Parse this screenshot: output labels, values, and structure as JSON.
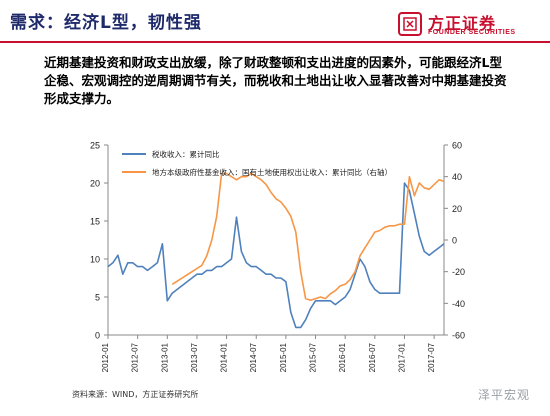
{
  "header": {
    "title": "需求：经济L型，韧性强",
    "logo_cn": "方正证券",
    "logo_en": "FOUNDER SECURITIES"
  },
  "intro_text": "近期基建投资和财政支出放缓，除了财政整顿和支出进度的因素外，可能跟经济L型企稳、宏观调控的逆周期调节有关，而税收和土地出让收入显著改善对中期基建投资形成支撑力。",
  "footer": {
    "source": "资料来源：WIND，方正证券研究所",
    "watermark": "泽平宏观"
  },
  "colors": {
    "accent": "#c8102e",
    "title": "#1f2a6b",
    "series_tax": "#4f81bd",
    "series_land": "#f79646"
  },
  "chart_data": {
    "type": "line",
    "title": "",
    "x": [
      "2012-01",
      "2012-02",
      "2012-03",
      "2012-04",
      "2012-05",
      "2012-06",
      "2012-07",
      "2012-08",
      "2012-09",
      "2012-10",
      "2012-11",
      "2012-12",
      "2013-01",
      "2013-02",
      "2013-03",
      "2013-04",
      "2013-05",
      "2013-06",
      "2013-07",
      "2013-08",
      "2013-09",
      "2013-10",
      "2013-11",
      "2013-12",
      "2014-01",
      "2014-02",
      "2014-03",
      "2014-04",
      "2014-05",
      "2014-06",
      "2014-07",
      "2014-08",
      "2014-09",
      "2014-10",
      "2014-11",
      "2014-12",
      "2015-01",
      "2015-02",
      "2015-03",
      "2015-04",
      "2015-05",
      "2015-06",
      "2015-07",
      "2015-08",
      "2015-09",
      "2015-10",
      "2015-11",
      "2015-12",
      "2016-01",
      "2016-02",
      "2016-03",
      "2016-04",
      "2016-05",
      "2016-06",
      "2016-07",
      "2016-08",
      "2016-09",
      "2016-10",
      "2016-11",
      "2016-12",
      "2017-01",
      "2017-02",
      "2017-03",
      "2017-04",
      "2017-05",
      "2017-06",
      "2017-07",
      "2017-08",
      "2017-09"
    ],
    "x_tick_labels": [
      "2012-01",
      "2012-07",
      "2013-01",
      "2013-07",
      "2014-01",
      "2014-07",
      "2015-01",
      "2015-07",
      "2016-01",
      "2016-07",
      "2017-01",
      "2017-07"
    ],
    "left_axis": {
      "ylim": [
        0,
        25
      ],
      "ticks": [
        0,
        5,
        10,
        15,
        20,
        25
      ]
    },
    "right_axis": {
      "ylim": [
        -60,
        60
      ],
      "ticks": [
        -60,
        -40,
        -20,
        0,
        20,
        40,
        60
      ]
    },
    "legend_position": "top-left",
    "grid": false,
    "series": [
      {
        "name": "税收收入：累计同比",
        "axis": "left",
        "values": [
          9.0,
          9.5,
          10.5,
          8.0,
          9.5,
          9.5,
          9.0,
          9.0,
          8.5,
          9.0,
          9.5,
          12.0,
          4.5,
          5.5,
          6.0,
          6.5,
          7.0,
          7.5,
          8.0,
          8.0,
          8.5,
          8.5,
          9.0,
          9.0,
          9.5,
          10.0,
          15.5,
          11.0,
          9.5,
          9.0,
          9.0,
          8.5,
          8.0,
          8.0,
          7.5,
          7.5,
          7.0,
          3.0,
          1.0,
          1.0,
          2.0,
          3.5,
          4.5,
          4.5,
          4.5,
          4.5,
          4.0,
          4.5,
          5.0,
          6.0,
          8.0,
          10.0,
          9.0,
          7.0,
          6.0,
          5.5,
          5.5,
          5.5,
          5.5,
          5.5,
          20.0,
          19.0,
          16.0,
          13.0,
          11.0,
          10.5,
          11.0,
          11.5,
          12.0
        ]
      },
      {
        "name": "地方本级政府性基金收入：国有土地使用权出让收入：累计同比（右轴）",
        "axis": "right",
        "values": [
          null,
          null,
          null,
          null,
          null,
          null,
          null,
          null,
          null,
          null,
          null,
          null,
          null,
          -28,
          -26,
          -24,
          -22,
          -20,
          -18,
          -16,
          -10,
          0,
          15,
          42,
          42,
          40,
          38,
          40,
          40,
          42,
          40,
          38,
          35,
          30,
          26,
          24,
          20,
          15,
          5,
          -20,
          -37,
          -38,
          -37,
          -36,
          -37,
          -34,
          -32,
          -29,
          -28,
          -25,
          -20,
          -10,
          -5,
          0,
          5,
          6,
          8,
          9,
          9,
          10,
          10,
          40,
          28,
          36,
          33,
          32,
          35,
          38,
          37
        ]
      }
    ]
  }
}
